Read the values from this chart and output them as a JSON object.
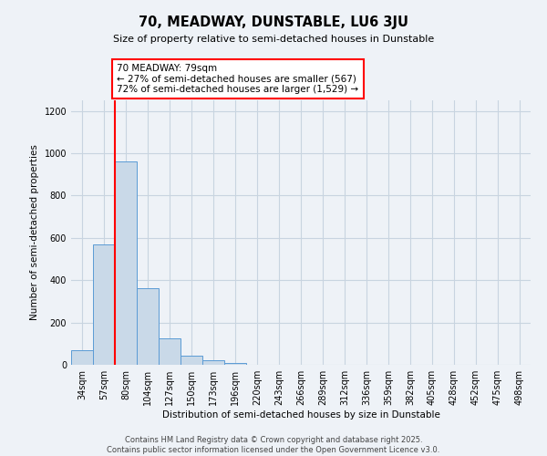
{
  "title": "70, MEADWAY, DUNSTABLE, LU6 3JU",
  "subtitle": "Size of property relative to semi-detached houses in Dunstable",
  "xlabel": "Distribution of semi-detached houses by size in Dunstable",
  "ylabel": "Number of semi-detached properties",
  "categories": [
    "34sqm",
    "57sqm",
    "80sqm",
    "104sqm",
    "127sqm",
    "150sqm",
    "173sqm",
    "196sqm",
    "220sqm",
    "243sqm",
    "266sqm",
    "289sqm",
    "312sqm",
    "336sqm",
    "359sqm",
    "382sqm",
    "405sqm",
    "428sqm",
    "452sqm",
    "475sqm",
    "498sqm"
  ],
  "values": [
    70,
    567,
    962,
    362,
    125,
    45,
    20,
    8,
    0,
    0,
    0,
    0,
    0,
    0,
    0,
    0,
    0,
    0,
    0,
    0,
    0
  ],
  "bar_color": "#c9d9e8",
  "bar_edge_color": "#5b9bd5",
  "highlight_line_color": "red",
  "annotation_text": "70 MEADWAY: 79sqm\n← 27% of semi-detached houses are smaller (567)\n72% of semi-detached houses are larger (1,529) →",
  "annotation_box_color": "white",
  "annotation_box_edge_color": "red",
  "ylim": [
    0,
    1250
  ],
  "yticks": [
    0,
    200,
    400,
    600,
    800,
    1000,
    1200
  ],
  "grid_color": "#c8d4e0",
  "background_color": "#eef2f7",
  "footer_line1": "Contains HM Land Registry data © Crown copyright and database right 2025.",
  "footer_line2": "Contains public sector information licensed under the Open Government Licence v3.0."
}
